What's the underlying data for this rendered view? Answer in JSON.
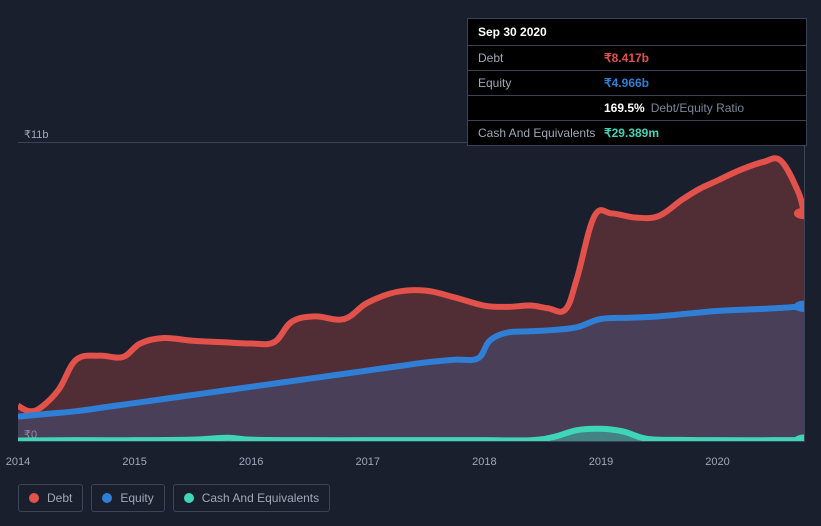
{
  "tooltip": {
    "date": "Sep 30 2020",
    "rows": [
      {
        "label": "Debt",
        "value": "₹8.417b",
        "color": "#e2524a"
      },
      {
        "label": "Equity",
        "value": "₹4.966b",
        "color": "#2f7fd6"
      },
      {
        "label": "",
        "value": "169.5%",
        "sub": "Debt/Equity Ratio",
        "color": "#ffffff"
      },
      {
        "label": "Cash And Equivalents",
        "value": "₹29.389m",
        "color": "#3fd6b8"
      }
    ]
  },
  "chart": {
    "type": "area",
    "background_color": "#1a1f2e",
    "grid_color": "#3a4456",
    "text_color": "#9fa8b7",
    "y": {
      "min": 0,
      "max": 11,
      "ticks": [
        {
          "v": 0,
          "label": "₹0"
        },
        {
          "v": 11,
          "label": "₹11b"
        }
      ]
    },
    "x": {
      "min": 2014,
      "max": 2020.75,
      "ticks": [
        2014,
        2015,
        2016,
        2017,
        2018,
        2019,
        2020
      ]
    },
    "series": [
      {
        "name": "Debt",
        "color": "#e2524a",
        "fill_opacity": 0.28,
        "line_width": 2,
        "points": [
          [
            2014.0,
            1.3
          ],
          [
            2014.1,
            1.1
          ],
          [
            2014.2,
            1.25
          ],
          [
            2014.35,
            1.9
          ],
          [
            2014.5,
            3.0
          ],
          [
            2014.7,
            3.15
          ],
          [
            2014.9,
            3.1
          ],
          [
            2015.05,
            3.6
          ],
          [
            2015.25,
            3.8
          ],
          [
            2015.5,
            3.7
          ],
          [
            2015.75,
            3.65
          ],
          [
            2016.0,
            3.6
          ],
          [
            2016.2,
            3.65
          ],
          [
            2016.35,
            4.4
          ],
          [
            2016.55,
            4.6
          ],
          [
            2016.8,
            4.5
          ],
          [
            2017.0,
            5.1
          ],
          [
            2017.25,
            5.5
          ],
          [
            2017.5,
            5.55
          ],
          [
            2017.75,
            5.3
          ],
          [
            2018.0,
            5.0
          ],
          [
            2018.2,
            4.95
          ],
          [
            2018.4,
            5.0
          ],
          [
            2018.55,
            4.9
          ],
          [
            2018.7,
            4.85
          ],
          [
            2018.8,
            6.0
          ],
          [
            2018.95,
            8.3
          ],
          [
            2019.1,
            8.4
          ],
          [
            2019.3,
            8.25
          ],
          [
            2019.5,
            8.3
          ],
          [
            2019.7,
            8.9
          ],
          [
            2019.85,
            9.3
          ],
          [
            2020.0,
            9.6
          ],
          [
            2020.2,
            10.0
          ],
          [
            2020.4,
            10.3
          ],
          [
            2020.55,
            10.35
          ],
          [
            2020.7,
            9.2
          ],
          [
            2020.75,
            8.4
          ]
        ]
      },
      {
        "name": "Equity",
        "color": "#2f7fd6",
        "fill_opacity": 0.22,
        "line_width": 2,
        "points": [
          [
            2014.0,
            0.9
          ],
          [
            2014.25,
            1.0
          ],
          [
            2014.5,
            1.1
          ],
          [
            2014.75,
            1.25
          ],
          [
            2015.0,
            1.4
          ],
          [
            2015.25,
            1.55
          ],
          [
            2015.5,
            1.7
          ],
          [
            2015.75,
            1.85
          ],
          [
            2016.0,
            2.0
          ],
          [
            2016.25,
            2.15
          ],
          [
            2016.5,
            2.3
          ],
          [
            2016.75,
            2.45
          ],
          [
            2017.0,
            2.6
          ],
          [
            2017.25,
            2.75
          ],
          [
            2017.5,
            2.9
          ],
          [
            2017.75,
            3.0
          ],
          [
            2017.95,
            3.05
          ],
          [
            2018.05,
            3.7
          ],
          [
            2018.2,
            4.0
          ],
          [
            2018.4,
            4.05
          ],
          [
            2018.6,
            4.1
          ],
          [
            2018.8,
            4.2
          ],
          [
            2019.0,
            4.5
          ],
          [
            2019.25,
            4.55
          ],
          [
            2019.5,
            4.6
          ],
          [
            2019.75,
            4.7
          ],
          [
            2020.0,
            4.8
          ],
          [
            2020.25,
            4.85
          ],
          [
            2020.5,
            4.9
          ],
          [
            2020.75,
            4.97
          ]
        ]
      },
      {
        "name": "Cash And Equivalents",
        "color": "#3fd6b8",
        "fill_opacity": 0.45,
        "line_width": 2,
        "points": [
          [
            2014.0,
            0.02
          ],
          [
            2014.5,
            0.03
          ],
          [
            2015.0,
            0.03
          ],
          [
            2015.5,
            0.05
          ],
          [
            2015.8,
            0.12
          ],
          [
            2016.0,
            0.05
          ],
          [
            2016.5,
            0.03
          ],
          [
            2017.0,
            0.03
          ],
          [
            2017.5,
            0.03
          ],
          [
            2018.0,
            0.03
          ],
          [
            2018.4,
            0.03
          ],
          [
            2018.6,
            0.15
          ],
          [
            2018.8,
            0.4
          ],
          [
            2019.0,
            0.45
          ],
          [
            2019.2,
            0.35
          ],
          [
            2019.4,
            0.08
          ],
          [
            2019.7,
            0.04
          ],
          [
            2020.0,
            0.03
          ],
          [
            2020.5,
            0.03
          ],
          [
            2020.75,
            0.03
          ]
        ]
      }
    ],
    "end_markers": [
      {
        "series": "Debt",
        "color": "#e2524a",
        "y": 8.4
      },
      {
        "series": "Equity",
        "color": "#2f7fd6",
        "y": 4.97
      },
      {
        "series": "Cash And Equivalents",
        "color": "#3fd6b8",
        "y": 0.03
      }
    ]
  },
  "legend": {
    "items": [
      {
        "label": "Debt",
        "color": "#e2524a"
      },
      {
        "label": "Equity",
        "color": "#2f7fd6"
      },
      {
        "label": "Cash And Equivalents",
        "color": "#3fd6b8"
      }
    ]
  }
}
